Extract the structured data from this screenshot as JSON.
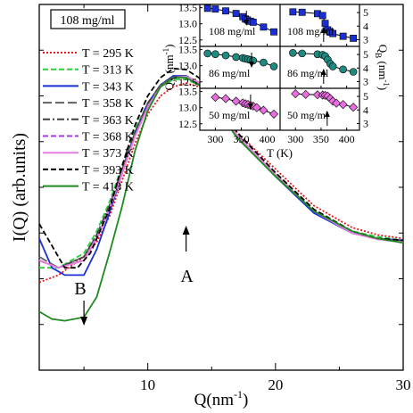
{
  "chart_data": [
    {
      "type": "line",
      "title": "",
      "xlabel": "Q(nm",
      "xlabel_sup": "-1",
      "xlabel_end": ")",
      "ylabel": "I(Q) (arb.units)",
      "xlim": [
        1.5,
        30
      ],
      "x_ticks": [
        10,
        20,
        30
      ],
      "concentration_label": "108 mg/ml",
      "annotations": [
        {
          "text": "B",
          "x": 5.0,
          "arrow": "down"
        },
        {
          "text": "A",
          "x": 13.0,
          "arrow": "up"
        }
      ],
      "legend_position": "left",
      "series": [
        {
          "name": "T = 295 K",
          "color": "#e8161b",
          "dash": "dot",
          "points": [
            [
              1.5,
              0.76
            ],
            [
              3,
              0.74
            ],
            [
              5,
              0.69
            ],
            [
              6,
              0.65
            ],
            [
              7,
              0.58
            ],
            [
              8,
              0.48
            ],
            [
              9,
              0.38
            ],
            [
              10,
              0.3
            ],
            [
              11,
              0.25
            ],
            [
              12,
              0.225
            ],
            [
              13,
              0.215
            ],
            [
              14,
              0.225
            ],
            [
              15,
              0.26
            ],
            [
              17,
              0.35
            ],
            [
              20,
              0.45
            ],
            [
              23,
              0.55
            ],
            [
              26,
              0.61
            ],
            [
              28,
              0.63
            ],
            [
              30,
              0.64
            ]
          ]
        },
        {
          "name": "T = 313 K",
          "color": "#2ecc40",
          "dash": "dash",
          "points": [
            [
              1.5,
              0.72
            ],
            [
              3,
              0.72
            ],
            [
              5,
              0.68
            ],
            [
              6,
              0.62
            ],
            [
              7,
              0.54
            ],
            [
              8,
              0.44
            ],
            [
              9,
              0.34
            ],
            [
              10,
              0.27
            ],
            [
              11,
              0.225
            ],
            [
              12,
              0.205
            ],
            [
              13,
              0.205
            ],
            [
              14,
              0.22
            ],
            [
              15,
              0.26
            ],
            [
              17,
              0.36
            ],
            [
              20,
              0.46
            ],
            [
              23,
              0.56
            ],
            [
              26,
              0.62
            ],
            [
              28,
              0.635
            ],
            [
              30,
              0.645
            ]
          ]
        },
        {
          "name": "T = 343 K",
          "color": "#1a2fd6",
          "dash": "solid",
          "points": [
            [
              1.5,
              0.64
            ],
            [
              2.5,
              0.72
            ],
            [
              3.5,
              0.74
            ],
            [
              5,
              0.74
            ],
            [
              6,
              0.67
            ],
            [
              7,
              0.57
            ],
            [
              8,
              0.46
            ],
            [
              9,
              0.35
            ],
            [
              10,
              0.27
            ],
            [
              11,
              0.22
            ],
            [
              12,
              0.195
            ],
            [
              13,
              0.195
            ],
            [
              14,
              0.215
            ],
            [
              15,
              0.26
            ],
            [
              17,
              0.36
            ],
            [
              20,
              0.47
            ],
            [
              23,
              0.57
            ],
            [
              26,
              0.625
            ],
            [
              28,
              0.64
            ],
            [
              30,
              0.645
            ]
          ]
        },
        {
          "name": "T = 358 K",
          "color": "#606060",
          "dash": "longdash",
          "points": [
            [
              1.5,
              0.69
            ],
            [
              3,
              0.72
            ],
            [
              5,
              0.69
            ],
            [
              6,
              0.63
            ],
            [
              7,
              0.55
            ],
            [
              8,
              0.45
            ],
            [
              9,
              0.35
            ],
            [
              10,
              0.27
            ],
            [
              11,
              0.22
            ],
            [
              12,
              0.2
            ],
            [
              13,
              0.198
            ],
            [
              14,
              0.215
            ],
            [
              15,
              0.26
            ],
            [
              17,
              0.36
            ],
            [
              20,
              0.465
            ],
            [
              23,
              0.565
            ],
            [
              26,
              0.625
            ],
            [
              28,
              0.64
            ],
            [
              30,
              0.648
            ]
          ]
        },
        {
          "name": "T = 363 K",
          "color": "#404040",
          "dash": "dashdot",
          "points": [
            [
              1.5,
              0.7
            ],
            [
              3,
              0.72
            ],
            [
              5,
              0.69
            ],
            [
              6,
              0.63
            ],
            [
              7,
              0.55
            ],
            [
              8,
              0.45
            ],
            [
              9,
              0.35
            ],
            [
              10,
              0.27
            ],
            [
              11,
              0.22
            ],
            [
              12,
              0.198
            ],
            [
              13,
              0.196
            ],
            [
              14,
              0.213
            ],
            [
              15,
              0.258
            ],
            [
              17,
              0.358
            ],
            [
              20,
              0.465
            ],
            [
              23,
              0.565
            ],
            [
              26,
              0.625
            ],
            [
              28,
              0.64
            ],
            [
              30,
              0.648
            ]
          ]
        },
        {
          "name": "T = 368 K",
          "color": "#a23be0",
          "dash": "dash",
          "points": [
            [
              1.5,
              0.7
            ],
            [
              3,
              0.72
            ],
            [
              5,
              0.7
            ],
            [
              6,
              0.64
            ],
            [
              7,
              0.56
            ],
            [
              8,
              0.46
            ],
            [
              9,
              0.36
            ],
            [
              10,
              0.28
            ],
            [
              11,
              0.225
            ],
            [
              12,
              0.2
            ],
            [
              13,
              0.197
            ],
            [
              14,
              0.213
            ],
            [
              15,
              0.258
            ],
            [
              17,
              0.358
            ],
            [
              20,
              0.465
            ],
            [
              23,
              0.565
            ],
            [
              26,
              0.625
            ],
            [
              28,
              0.642
            ],
            [
              30,
              0.65
            ]
          ]
        },
        {
          "name": "T = 373 K",
          "color": "#e87be0",
          "dash": "solid",
          "points": [
            [
              1.5,
              0.7
            ],
            [
              3,
              0.72
            ],
            [
              5,
              0.7
            ],
            [
              6,
              0.64
            ],
            [
              7,
              0.56
            ],
            [
              8,
              0.46
            ],
            [
              9,
              0.36
            ],
            [
              10,
              0.28
            ],
            [
              11,
              0.225
            ],
            [
              12,
              0.2
            ],
            [
              13,
              0.197
            ],
            [
              14,
              0.213
            ],
            [
              15,
              0.258
            ],
            [
              17,
              0.358
            ],
            [
              20,
              0.465
            ],
            [
              23,
              0.565
            ],
            [
              26,
              0.625
            ],
            [
              28,
              0.642
            ],
            [
              30,
              0.65
            ]
          ]
        },
        {
          "name": "T = 393 K",
          "color": "#000000",
          "dash": "dash",
          "points": [
            [
              1.5,
              0.6
            ],
            [
              2.5,
              0.66
            ],
            [
              3.5,
              0.72
            ],
            [
              4.5,
              0.72
            ],
            [
              5.5,
              0.68
            ],
            [
              7,
              0.56
            ],
            [
              8,
              0.44
            ],
            [
              9,
              0.33
            ],
            [
              10,
              0.25
            ],
            [
              11,
              0.2
            ],
            [
              12,
              0.175
            ],
            [
              13,
              0.178
            ],
            [
              14,
              0.2
            ],
            [
              15,
              0.245
            ],
            [
              17,
              0.35
            ],
            [
              20,
              0.46
            ],
            [
              23,
              0.56
            ],
            [
              26,
              0.62
            ],
            [
              28,
              0.64
            ],
            [
              30,
              0.645
            ]
          ]
        },
        {
          "name": "T = 413 K",
          "color": "#1f8a1f",
          "dash": "solid",
          "points": [
            [
              1.5,
              0.84
            ],
            [
              2.5,
              0.86
            ],
            [
              3.5,
              0.865
            ],
            [
              5,
              0.855
            ],
            [
              6,
              0.8
            ],
            [
              7,
              0.68
            ],
            [
              8,
              0.55
            ],
            [
              9,
              0.4
            ],
            [
              10,
              0.29
            ],
            [
              11,
              0.225
            ],
            [
              12,
              0.2
            ],
            [
              13,
              0.2
            ],
            [
              14,
              0.22
            ],
            [
              15,
              0.265
            ],
            [
              17,
              0.365
            ],
            [
              20,
              0.47
            ],
            [
              23,
              0.565
            ],
            [
              26,
              0.62
            ],
            [
              28,
              0.64
            ],
            [
              30,
              0.652
            ]
          ]
        }
      ]
    },
    {
      "type": "scatter",
      "inset": true,
      "xlabel": "T (K)",
      "left_ylabel": "Q",
      "left_ylabel_sub": "A",
      "left_ylabel_unit": " (nm",
      "left_ylabel_sup": "-1",
      "left_ylabel_end": ")",
      "right_ylabel": "Q",
      "right_ylabel_sub": "B",
      "right_ylabel_unit": " (nm",
      "right_ylabel_sup": "-1",
      "right_ylabel_end": ")",
      "xlim": [
        270,
        425
      ],
      "x_ticks": [
        "300",
        "350",
        "400"
      ],
      "left_ylim": [
        12.3,
        13.6
      ],
      "left_y_ticks": [
        "12.5",
        "13.0",
        "13.5"
      ],
      "right_ylim": [
        2.5,
        5.6
      ],
      "right_y_ticks": [
        "3",
        "4",
        "5"
      ],
      "panels": [
        {
          "concentration": "108 mg/ml",
          "axis": "QA",
          "marker": "square",
          "color": "#1a2fd6",
          "arrow_T": 360,
          "x": [
            285,
            300,
            320,
            340,
            353,
            358,
            362,
            368,
            373,
            393,
            413
          ],
          "y": [
            13.48,
            13.46,
            13.4,
            13.32,
            13.22,
            13.15,
            13.12,
            13.08,
            13.05,
            12.9,
            12.75
          ]
        },
        {
          "concentration": "108 mg/ml",
          "axis": "QB",
          "marker": "square",
          "color": "#1a2fd6",
          "arrow_T": 355,
          "x": [
            295,
            313,
            343,
            353,
            358,
            363,
            368,
            373,
            393,
            413
          ],
          "y": [
            5.05,
            5.02,
            4.92,
            4.78,
            4.2,
            3.72,
            3.55,
            3.45,
            3.25,
            3.1
          ]
        },
        {
          "concentration": "86 mg/ml",
          "axis": "QA",
          "marker": "circle",
          "color": "#1f8a80",
          "arrow_T": 370,
          "x": [
            285,
            300,
            320,
            340,
            353,
            358,
            363,
            368,
            373,
            393,
            413
          ],
          "y": [
            13.38,
            13.36,
            13.32,
            13.27,
            13.24,
            13.22,
            13.2,
            13.18,
            13.16,
            13.1,
            12.98
          ]
        },
        {
          "concentration": "86 mg/ml",
          "axis": "QB",
          "marker": "circle",
          "color": "#1f8a80",
          "arrow_T": 355,
          "x": [
            295,
            313,
            343,
            353,
            358,
            363,
            368,
            373,
            393,
            413
          ],
          "y": [
            5.12,
            5.08,
            5.02,
            4.98,
            4.88,
            4.62,
            4.32,
            4.12,
            3.9,
            3.72
          ]
        },
        {
          "concentration": "50 mg/ml",
          "axis": "QA",
          "marker": "diamond",
          "color": "#e86de0",
          "arrow_T": 368,
          "x": [
            300,
            320,
            340,
            353,
            358,
            363,
            368,
            373,
            380,
            393,
            413
          ],
          "y": [
            13.32,
            13.28,
            13.2,
            13.15,
            13.12,
            13.1,
            13.07,
            13.05,
            13.0,
            12.92,
            12.8
          ]
        },
        {
          "concentration": "50 mg/ml",
          "axis": "QB",
          "marker": "diamond",
          "color": "#e86de0",
          "arrow_T": 362,
          "x": [
            300,
            320,
            343,
            353,
            358,
            363,
            368,
            373,
            380,
            393,
            413
          ],
          "y": [
            5.2,
            5.15,
            5.12,
            5.1,
            5.08,
            5.02,
            4.85,
            4.65,
            4.5,
            4.4,
            4.2
          ]
        }
      ]
    }
  ]
}
